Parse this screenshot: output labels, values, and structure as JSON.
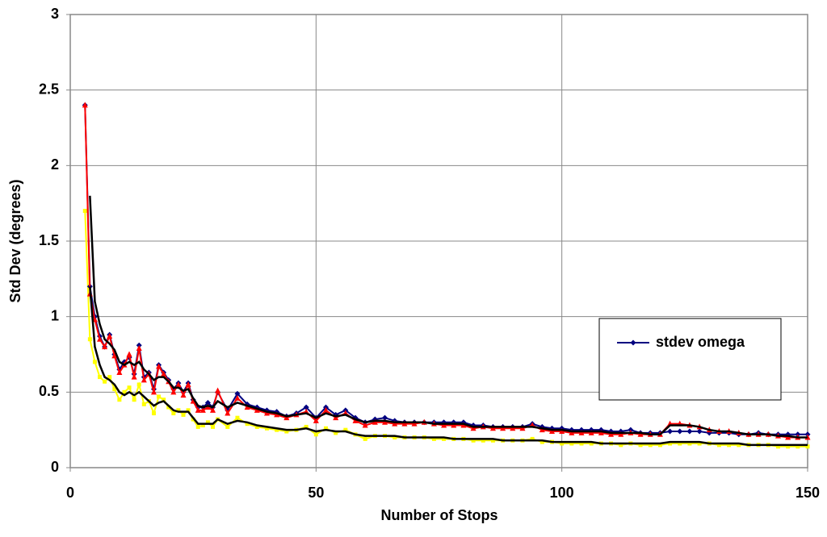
{
  "chart_data": {
    "type": "line",
    "xlabel": "Number of Stops",
    "ylabel": "Std Dev (degrees)",
    "xlim": [
      0,
      150
    ],
    "xticks": [
      0,
      50,
      100,
      150
    ],
    "ylim": [
      0,
      3
    ],
    "yticks": [
      0,
      0.5,
      1,
      1.5,
      2,
      2.5,
      3
    ],
    "grid": true,
    "legend": "right",
    "x": [
      3,
      4,
      5,
      6,
      7,
      8,
      9,
      10,
      11,
      12,
      13,
      14,
      15,
      16,
      17,
      18,
      19,
      20,
      21,
      22,
      23,
      24,
      25,
      26,
      27,
      28,
      29,
      30,
      32,
      34,
      36,
      38,
      40,
      42,
      44,
      46,
      48,
      50,
      52,
      54,
      56,
      58,
      60,
      62,
      64,
      66,
      68,
      70,
      72,
      74,
      76,
      78,
      80,
      82,
      84,
      86,
      88,
      90,
      92,
      94,
      96,
      98,
      100,
      102,
      104,
      106,
      108,
      110,
      112,
      114,
      116,
      118,
      120,
      122,
      124,
      126,
      128,
      130,
      132,
      134,
      136,
      138,
      140,
      142,
      144,
      146,
      148,
      150
    ],
    "series": [
      {
        "color": "#ffff00",
        "marker": "square",
        "values": [
          1.7,
          0.85,
          0.7,
          0.6,
          0.57,
          0.6,
          0.52,
          0.45,
          0.5,
          0.53,
          0.45,
          0.55,
          0.42,
          0.44,
          0.36,
          0.47,
          0.45,
          0.4,
          0.36,
          0.38,
          0.35,
          0.38,
          0.32,
          0.27,
          0.28,
          0.3,
          0.27,
          0.32,
          0.27,
          0.33,
          0.29,
          0.27,
          0.26,
          0.25,
          0.24,
          0.25,
          0.27,
          0.22,
          0.26,
          0.23,
          0.25,
          0.22,
          0.19,
          0.21,
          0.21,
          0.2,
          0.2,
          0.2,
          0.2,
          0.19,
          0.19,
          0.19,
          0.19,
          0.18,
          0.18,
          0.18,
          0.18,
          0.18,
          0.18,
          0.19,
          0.17,
          0.17,
          0.16,
          0.16,
          0.16,
          0.16,
          0.16,
          0.16,
          0.15,
          0.16,
          0.15,
          0.15,
          0.15,
          0.16,
          0.16,
          0.16,
          0.16,
          0.16,
          0.15,
          0.15,
          0.15,
          0.15,
          0.15,
          0.15,
          0.14,
          0.14,
          0.14,
          0.14
        ]
      },
      {
        "name": "stdev omega",
        "color": "#000080",
        "marker": "diamond",
        "values": [
          2.4,
          1.2,
          1.0,
          0.87,
          0.8,
          0.88,
          0.75,
          0.65,
          0.7,
          0.73,
          0.62,
          0.81,
          0.6,
          0.63,
          0.52,
          0.68,
          0.63,
          0.58,
          0.52,
          0.56,
          0.5,
          0.56,
          0.45,
          0.4,
          0.4,
          0.43,
          0.4,
          0.5,
          0.38,
          0.49,
          0.42,
          0.4,
          0.38,
          0.37,
          0.34,
          0.36,
          0.4,
          0.33,
          0.4,
          0.35,
          0.38,
          0.33,
          0.3,
          0.32,
          0.33,
          0.31,
          0.3,
          0.3,
          0.3,
          0.3,
          0.3,
          0.3,
          0.3,
          0.28,
          0.28,
          0.27,
          0.27,
          0.27,
          0.27,
          0.29,
          0.27,
          0.26,
          0.26,
          0.25,
          0.25,
          0.25,
          0.25,
          0.24,
          0.24,
          0.25,
          0.23,
          0.23,
          0.23,
          0.24,
          0.24,
          0.24,
          0.24,
          0.23,
          0.23,
          0.23,
          0.22,
          0.22,
          0.23,
          0.22,
          0.22,
          0.22,
          0.22,
          0.22
        ]
      },
      {
        "color": "#ff0000",
        "marker": "triangle",
        "values": [
          2.4,
          1.15,
          0.98,
          0.85,
          0.8,
          0.87,
          0.74,
          0.63,
          0.68,
          0.75,
          0.6,
          0.79,
          0.58,
          0.62,
          0.5,
          0.67,
          0.62,
          0.57,
          0.5,
          0.55,
          0.48,
          0.55,
          0.44,
          0.38,
          0.38,
          0.4,
          0.38,
          0.51,
          0.36,
          0.46,
          0.4,
          0.38,
          0.36,
          0.35,
          0.33,
          0.35,
          0.37,
          0.31,
          0.38,
          0.33,
          0.36,
          0.31,
          0.28,
          0.3,
          0.3,
          0.29,
          0.29,
          0.29,
          0.3,
          0.29,
          0.28,
          0.28,
          0.28,
          0.26,
          0.27,
          0.26,
          0.26,
          0.26,
          0.26,
          0.28,
          0.25,
          0.24,
          0.24,
          0.23,
          0.23,
          0.23,
          0.23,
          0.22,
          0.22,
          0.23,
          0.22,
          0.22,
          0.22,
          0.29,
          0.29,
          0.28,
          0.27,
          0.25,
          0.24,
          0.24,
          0.23,
          0.22,
          0.22,
          0.22,
          0.21,
          0.2,
          0.2,
          0.2
        ]
      },
      {
        "color": "#000000",
        "marker": "none",
        "values": [
          null,
          1.8,
          1.1,
          0.95,
          0.85,
          0.82,
          0.78,
          0.7,
          0.68,
          0.7,
          0.68,
          0.7,
          0.65,
          0.62,
          0.58,
          0.6,
          0.6,
          0.57,
          0.53,
          0.53,
          0.51,
          0.52,
          0.46,
          0.41,
          0.4,
          0.41,
          0.4,
          0.44,
          0.4,
          0.43,
          0.41,
          0.39,
          0.37,
          0.36,
          0.34,
          0.35,
          0.36,
          0.33,
          0.36,
          0.34,
          0.35,
          0.32,
          0.3,
          0.31,
          0.31,
          0.3,
          0.3,
          0.3,
          0.3,
          0.29,
          0.29,
          0.29,
          0.29,
          0.27,
          0.27,
          0.27,
          0.27,
          0.27,
          0.27,
          0.27,
          0.26,
          0.25,
          0.25,
          0.24,
          0.24,
          0.24,
          0.24,
          0.23,
          0.23,
          0.23,
          0.23,
          0.22,
          0.22,
          0.28,
          0.28,
          0.28,
          0.27,
          0.25,
          0.24,
          0.24,
          0.23,
          0.22,
          0.22,
          0.22,
          0.21,
          0.21,
          0.2,
          0.2
        ]
      },
      {
        "color": "#000000",
        "marker": "none",
        "values": [
          null,
          1.2,
          0.8,
          0.68,
          0.6,
          0.58,
          0.55,
          0.5,
          0.48,
          0.5,
          0.48,
          0.5,
          0.47,
          0.44,
          0.41,
          0.43,
          0.44,
          0.41,
          0.38,
          0.37,
          0.37,
          0.37,
          0.33,
          0.29,
          0.29,
          0.29,
          0.29,
          0.32,
          0.29,
          0.31,
          0.3,
          0.28,
          0.27,
          0.26,
          0.25,
          0.25,
          0.26,
          0.24,
          0.25,
          0.24,
          0.24,
          0.22,
          0.21,
          0.21,
          0.21,
          0.21,
          0.2,
          0.2,
          0.2,
          0.2,
          0.2,
          0.19,
          0.19,
          0.19,
          0.19,
          0.19,
          0.18,
          0.18,
          0.18,
          0.18,
          0.18,
          0.17,
          0.17,
          0.17,
          0.17,
          0.17,
          0.16,
          0.16,
          0.16,
          0.16,
          0.16,
          0.16,
          0.16,
          0.17,
          0.17,
          0.17,
          0.17,
          0.16,
          0.16,
          0.16,
          0.16,
          0.15,
          0.15,
          0.15,
          0.15,
          0.15,
          0.15,
          0.15
        ]
      }
    ]
  }
}
